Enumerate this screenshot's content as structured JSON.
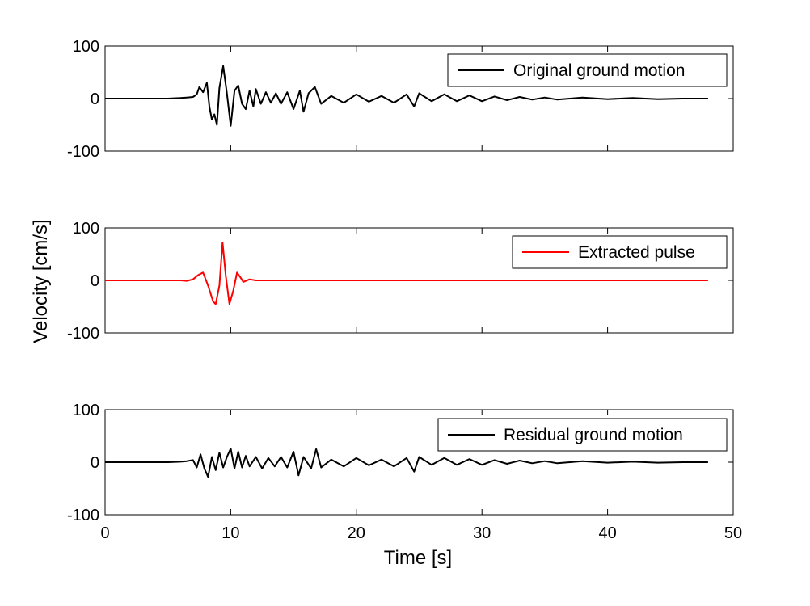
{
  "figure": {
    "ylabel": "Velocity [cm/s]",
    "xlabel": "Time [s]"
  },
  "chart_data": [
    {
      "type": "line",
      "xlim": [
        0,
        50
      ],
      "ylim": [
        -100,
        100
      ],
      "xticks": [
        0,
        10,
        20,
        30,
        40,
        50
      ],
      "yticks": [
        -100,
        0,
        100
      ],
      "show_xtick_labels": false,
      "grid": false,
      "legend": "top-right",
      "series": [
        {
          "name": "Original ground motion",
          "color": "#000000",
          "points": [
            [
              0,
              0
            ],
            [
              5,
              0
            ],
            [
              6,
              1
            ],
            [
              6.5,
              2
            ],
            [
              7,
              3
            ],
            [
              7.3,
              8
            ],
            [
              7.5,
              22
            ],
            [
              7.8,
              12
            ],
            [
              8.1,
              30
            ],
            [
              8.3,
              -15
            ],
            [
              8.5,
              -40
            ],
            [
              8.7,
              -30
            ],
            [
              8.9,
              -50
            ],
            [
              9.1,
              20
            ],
            [
              9.4,
              62
            ],
            [
              9.7,
              10
            ],
            [
              10,
              -52
            ],
            [
              10.3,
              15
            ],
            [
              10.6,
              25
            ],
            [
              10.9,
              -10
            ],
            [
              11.2,
              -20
            ],
            [
              11.5,
              15
            ],
            [
              11.8,
              -15
            ],
            [
              12,
              18
            ],
            [
              12.4,
              -10
            ],
            [
              12.8,
              12
            ],
            [
              13.2,
              -8
            ],
            [
              13.6,
              10
            ],
            [
              14,
              -10
            ],
            [
              14.5,
              12
            ],
            [
              15,
              -20
            ],
            [
              15.5,
              15
            ],
            [
              15.8,
              -25
            ],
            [
              16.2,
              10
            ],
            [
              16.7,
              22
            ],
            [
              17.2,
              -10
            ],
            [
              18,
              5
            ],
            [
              19,
              -8
            ],
            [
              20,
              8
            ],
            [
              21,
              -6
            ],
            [
              22,
              5
            ],
            [
              23,
              -8
            ],
            [
              24,
              8
            ],
            [
              24.6,
              -15
            ],
            [
              25,
              10
            ],
            [
              26,
              -5
            ],
            [
              27,
              8
            ],
            [
              28,
              -5
            ],
            [
              29,
              6
            ],
            [
              30,
              -5
            ],
            [
              31,
              4
            ],
            [
              32,
              -3
            ],
            [
              33,
              3
            ],
            [
              34,
              -2
            ],
            [
              35,
              2
            ],
            [
              36,
              -2
            ],
            [
              38,
              2
            ],
            [
              40,
              -1
            ],
            [
              42,
              1
            ],
            [
              44,
              -1
            ],
            [
              46,
              0
            ],
            [
              48,
              0
            ]
          ]
        }
      ]
    },
    {
      "type": "line",
      "xlim": [
        0,
        50
      ],
      "ylim": [
        -100,
        100
      ],
      "xticks": [
        0,
        10,
        20,
        30,
        40,
        50
      ],
      "yticks": [
        -100,
        0,
        100
      ],
      "show_xtick_labels": false,
      "grid": false,
      "legend": "top-right",
      "series": [
        {
          "name": "Extracted pulse",
          "color": "#ff0000",
          "points": [
            [
              0,
              0
            ],
            [
              6,
              0
            ],
            [
              6.5,
              -1
            ],
            [
              7,
              2
            ],
            [
              7.4,
              10
            ],
            [
              7.8,
              15
            ],
            [
              8.2,
              -10
            ],
            [
              8.6,
              -40
            ],
            [
              8.8,
              -45
            ],
            [
              9.1,
              -10
            ],
            [
              9.35,
              72
            ],
            [
              9.6,
              10
            ],
            [
              9.9,
              -45
            ],
            [
              10.2,
              -20
            ],
            [
              10.5,
              15
            ],
            [
              10.8,
              5
            ],
            [
              11,
              -3
            ],
            [
              11.5,
              2
            ],
            [
              12,
              0
            ],
            [
              13,
              0
            ],
            [
              48,
              0
            ]
          ]
        }
      ]
    },
    {
      "type": "line",
      "xlim": [
        0,
        50
      ],
      "ylim": [
        -100,
        100
      ],
      "xticks": [
        0,
        10,
        20,
        30,
        40,
        50
      ],
      "yticks": [
        -100,
        0,
        100
      ],
      "show_xtick_labels": true,
      "grid": false,
      "legend": "top-right",
      "series": [
        {
          "name": "Residual ground motion",
          "color": "#000000",
          "points": [
            [
              0,
              0
            ],
            [
              5,
              0
            ],
            [
              6,
              1
            ],
            [
              6.5,
              2
            ],
            [
              7,
              4
            ],
            [
              7.3,
              -10
            ],
            [
              7.6,
              15
            ],
            [
              7.9,
              -12
            ],
            [
              8.2,
              -28
            ],
            [
              8.5,
              10
            ],
            [
              8.8,
              -15
            ],
            [
              9.1,
              18
            ],
            [
              9.4,
              -10
            ],
            [
              9.7,
              10
            ],
            [
              10,
              26
            ],
            [
              10.3,
              -12
            ],
            [
              10.6,
              20
            ],
            [
              10.9,
              -10
            ],
            [
              11.2,
              12
            ],
            [
              11.5,
              -8
            ],
            [
              12,
              10
            ],
            [
              12.5,
              -12
            ],
            [
              13,
              8
            ],
            [
              13.5,
              -8
            ],
            [
              14,
              10
            ],
            [
              14.5,
              -10
            ],
            [
              15,
              20
            ],
            [
              15.4,
              -25
            ],
            [
              15.8,
              10
            ],
            [
              16.4,
              -12
            ],
            [
              16.8,
              25
            ],
            [
              17.2,
              -10
            ],
            [
              18,
              5
            ],
            [
              19,
              -8
            ],
            [
              20,
              8
            ],
            [
              21,
              -6
            ],
            [
              22,
              5
            ],
            [
              23,
              -8
            ],
            [
              24,
              8
            ],
            [
              24.6,
              -18
            ],
            [
              25,
              10
            ],
            [
              26,
              -5
            ],
            [
              27,
              8
            ],
            [
              28,
              -5
            ],
            [
              29,
              6
            ],
            [
              30,
              -5
            ],
            [
              31,
              4
            ],
            [
              32,
              -3
            ],
            [
              33,
              3
            ],
            [
              34,
              -2
            ],
            [
              35,
              2
            ],
            [
              36,
              -2
            ],
            [
              38,
              2
            ],
            [
              40,
              -1
            ],
            [
              42,
              1
            ],
            [
              44,
              -1
            ],
            [
              46,
              0
            ],
            [
              48,
              0
            ]
          ]
        }
      ]
    }
  ]
}
